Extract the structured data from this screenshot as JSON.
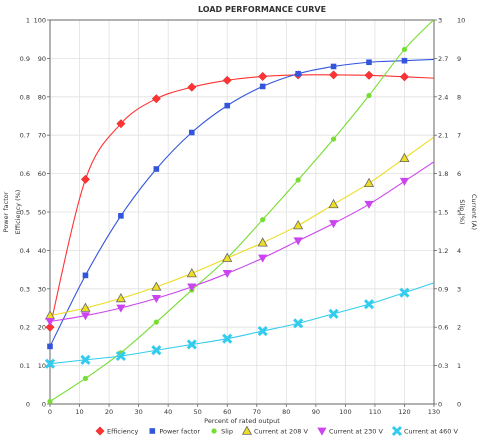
{
  "chart_data": {
    "type": "line",
    "title": "LOAD PERFORMANCE CURVE",
    "xlabel": "Percent of rated output",
    "xlim": [
      0,
      130
    ],
    "x_ticks": [
      "0",
      "10",
      "20",
      "30",
      "40",
      "50",
      "60",
      "70",
      "80",
      "90",
      "100",
      "110",
      "120",
      "130"
    ],
    "grid": true,
    "legend_position": "bottom",
    "axes": {
      "efficiency": {
        "label": "Efficiency (%)",
        "range": [
          0,
          100
        ],
        "ticks": [
          "0",
          "10",
          "20",
          "30",
          "40",
          "50",
          "60",
          "70",
          "80",
          "90",
          "100"
        ]
      },
      "power_factor": {
        "label": "Power factor",
        "range": [
          0,
          1
        ],
        "ticks": [
          "0",
          "0.1",
          "0.2",
          "0.3",
          "0.4",
          "0.5",
          "0.6",
          "0.7",
          "0.8",
          "0.9",
          "1"
        ]
      },
      "slip": {
        "label": "Slip (%)",
        "range": [
          0,
          3
        ],
        "ticks": [
          "0",
          "0.3",
          "0.6",
          "0.9",
          "1.2",
          "1.5",
          "1.8",
          "2.1",
          "2.4",
          "2.7",
          "3"
        ]
      },
      "current": {
        "label": "Current (A)",
        "range": [
          0,
          10
        ],
        "ticks": [
          "0",
          "1",
          "2",
          "3",
          "4",
          "5",
          "6",
          "7",
          "8",
          "9",
          "10"
        ]
      }
    },
    "series": [
      {
        "name": "Efficiency",
        "color": "#ff3333",
        "marker": "diamond",
        "axis": "efficiency",
        "x": [
          0,
          12,
          24,
          36,
          48,
          60,
          72,
          84,
          96,
          108,
          120
        ],
        "values": [
          20,
          58.5,
          73,
          79.5,
          82.5,
          84.3,
          85.3,
          85.7,
          85.7,
          85.6,
          85.2
        ]
      },
      {
        "name": "Power factor",
        "color": "#3355dd",
        "marker": "square",
        "axis": "power_factor",
        "x": [
          0,
          12,
          24,
          36,
          48,
          60,
          72,
          84,
          96,
          108,
          120
        ],
        "values": [
          0.15,
          0.335,
          0.49,
          0.612,
          0.707,
          0.777,
          0.827,
          0.86,
          0.879,
          0.89,
          0.894
        ]
      },
      {
        "name": "Slip",
        "color": "#77dd33",
        "marker": "circle",
        "axis": "slip",
        "x": [
          0,
          12,
          24,
          36,
          48,
          60,
          72,
          84,
          96,
          108,
          120
        ],
        "values": [
          0.02,
          0.2,
          0.4,
          0.64,
          0.89,
          1.14,
          1.44,
          1.75,
          2.07,
          2.41,
          2.77
        ]
      },
      {
        "name": "Current at 208 V",
        "color": "#eedd22",
        "marker": "triangle-up",
        "axis": "current",
        "x": [
          0,
          12,
          24,
          36,
          48,
          60,
          72,
          84,
          96,
          108,
          120
        ],
        "values": [
          2.3,
          2.5,
          2.75,
          3.05,
          3.4,
          3.8,
          4.2,
          4.65,
          5.2,
          5.75,
          6.4
        ]
      },
      {
        "name": "Current at 230 V",
        "color": "#cc44ee",
        "marker": "triangle-down",
        "axis": "current",
        "x": [
          0,
          12,
          24,
          36,
          48,
          60,
          72,
          84,
          96,
          108,
          120
        ],
        "values": [
          2.15,
          2.3,
          2.5,
          2.75,
          3.05,
          3.4,
          3.8,
          4.25,
          4.7,
          5.2,
          5.8
        ]
      },
      {
        "name": "Current at 460 V",
        "color": "#33ccee",
        "marker": "x",
        "axis": "current",
        "x": [
          0,
          12,
          24,
          36,
          48,
          60,
          72,
          84,
          96,
          108,
          120
        ],
        "values": [
          1.05,
          1.15,
          1.25,
          1.4,
          1.55,
          1.7,
          1.9,
          2.1,
          2.35,
          2.6,
          2.9
        ]
      }
    ]
  }
}
